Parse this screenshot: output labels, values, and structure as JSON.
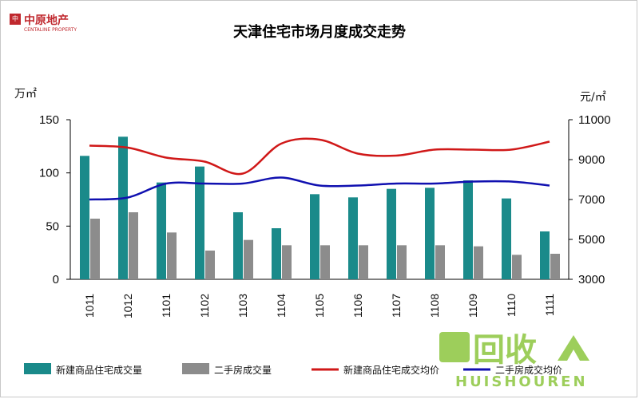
{
  "brand": {
    "name": "中原地产",
    "english": "CENTALINE PROPERTY",
    "mark": "中原"
  },
  "watermark": {
    "main": "回收",
    "sub": "HUISHOUREN"
  },
  "chart_data": {
    "type": "bar",
    "title": "天津住宅市场月度成交走势",
    "categories": [
      "1011",
      "1012",
      "1101",
      "1102",
      "1103",
      "1104",
      "1105",
      "1106",
      "1107",
      "1108",
      "1109",
      "1110",
      "1111"
    ],
    "y_left": {
      "unit": "万㎡",
      "range": [
        0,
        150
      ],
      "ticks": [
        "0",
        "50",
        "100",
        "150"
      ]
    },
    "y_right": {
      "unit": "元/㎡",
      "range": [
        3000,
        11000
      ],
      "ticks": [
        "3000",
        "5000",
        "7000",
        "9000",
        "11000"
      ]
    },
    "series": [
      {
        "name": "新建商品住宅成交量",
        "type": "bar",
        "axis": "left",
        "color": "#1a8a8a",
        "values": [
          116,
          134,
          91,
          106,
          63,
          48,
          80,
          77,
          85,
          86,
          93,
          76,
          45
        ]
      },
      {
        "name": "二手房成交量",
        "type": "bar",
        "axis": "left",
        "color": "#8c8c8c",
        "values": [
          57,
          63,
          44,
          27,
          37,
          32,
          32,
          32,
          32,
          32,
          31,
          23,
          24
        ]
      },
      {
        "name": "新建商品住宅成交均价",
        "type": "line",
        "axis": "right",
        "color": "#d01818",
        "values": [
          9700,
          9600,
          9100,
          8900,
          8300,
          9800,
          10000,
          9300,
          9200,
          9500,
          9500,
          9500,
          9900
        ]
      },
      {
        "name": "二手房成交均价",
        "type": "line",
        "axis": "right",
        "color": "#1010b0",
        "values": [
          7000,
          7100,
          7800,
          7800,
          7800,
          8100,
          7700,
          7700,
          7800,
          7800,
          7900,
          7900,
          7700
        ]
      }
    ],
    "legend_position": "bottom"
  }
}
